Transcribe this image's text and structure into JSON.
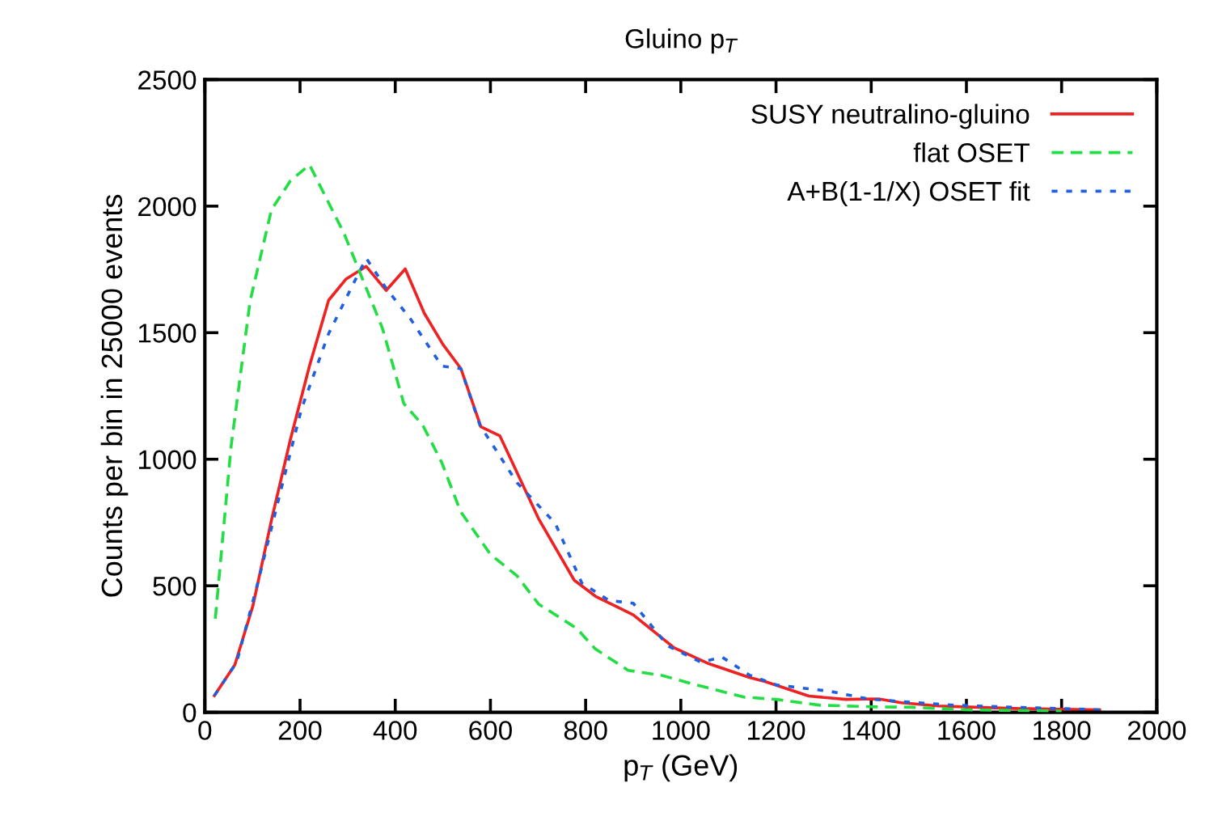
{
  "chart_data": {
    "type": "line",
    "title": "Gluino p$_{T}$",
    "xlabel": "p$_{T}$ (GeV)",
    "ylabel": "Counts per bin in 25000 events",
    "xlim": [
      0,
      2000
    ],
    "ylim": [
      0,
      2500
    ],
    "xticks": [
      0,
      200,
      400,
      600,
      800,
      1000,
      1200,
      1400,
      1600,
      1800,
      2000
    ],
    "yticks": [
      0,
      500,
      1000,
      1500,
      2000,
      2500
    ],
    "grid": false,
    "legend": "top right",
    "marker": "none",
    "series": [
      {
        "name": "SUSY neutralino-gluino",
        "color": "#ee2222",
        "line_style": "solid",
        "x": [
          20,
          63,
          101,
          140,
          180,
          220,
          260,
          296,
          339,
          381,
          421,
          461,
          500,
          538,
          580,
          620,
          702,
          776,
          821,
          900,
          986,
          1059,
          1144,
          1178,
          1269,
          1347,
          1415,
          1463,
          1541,
          1620,
          1700,
          1800,
          1880
        ],
        "values": [
          66,
          187,
          421,
          760,
          1080,
          1370,
          1628,
          1711,
          1762,
          1667,
          1752,
          1577,
          1454,
          1358,
          1128,
          1092,
          762,
          522,
          458,
          385,
          255,
          192,
          138,
          121,
          64,
          51,
          53,
          38,
          25,
          20,
          15,
          12,
          10
        ]
      },
      {
        "name": "flat OSET",
        "color": "#22dd44",
        "line_style": "dashed",
        "x": [
          22,
          55,
          95,
          140,
          180,
          220,
          293,
          373,
          418,
          458,
          498,
          537,
          600,
          656,
          701,
          781,
          820,
          889,
          962,
          1031,
          1133,
          1201,
          1292,
          1400,
          1483,
          1600,
          1700,
          1800
        ],
        "values": [
          370,
          1049,
          1624,
          1986,
          2101,
          2163,
          1890,
          1518,
          1220,
          1134,
          986,
          794,
          624,
          539,
          428,
          332,
          251,
          166,
          145,
          109,
          60,
          51,
          28,
          22,
          20,
          10,
          7,
          5
        ]
      },
      {
        "name": "A+B(1-1/X) OSET fit",
        "color": "#1f5fe0",
        "line_style": "dotted",
        "x": [
          20,
          67,
          112,
          160,
          203,
          260,
          305,
          339,
          384,
          430,
          498,
          538,
          578,
          656,
          736,
          792,
          849,
          900,
          973,
          1042,
          1087,
          1144,
          1201,
          1313,
          1393,
          1480,
          1575,
          1700,
          1800,
          1881
        ],
        "values": [
          66,
          198,
          517,
          880,
          1199,
          1496,
          1667,
          1794,
          1667,
          1560,
          1368,
          1358,
          1134,
          907,
          747,
          511,
          442,
          431,
          262,
          198,
          218,
          147,
          108,
          83,
          53,
          40,
          28,
          20,
          15,
          10
        ]
      }
    ]
  }
}
